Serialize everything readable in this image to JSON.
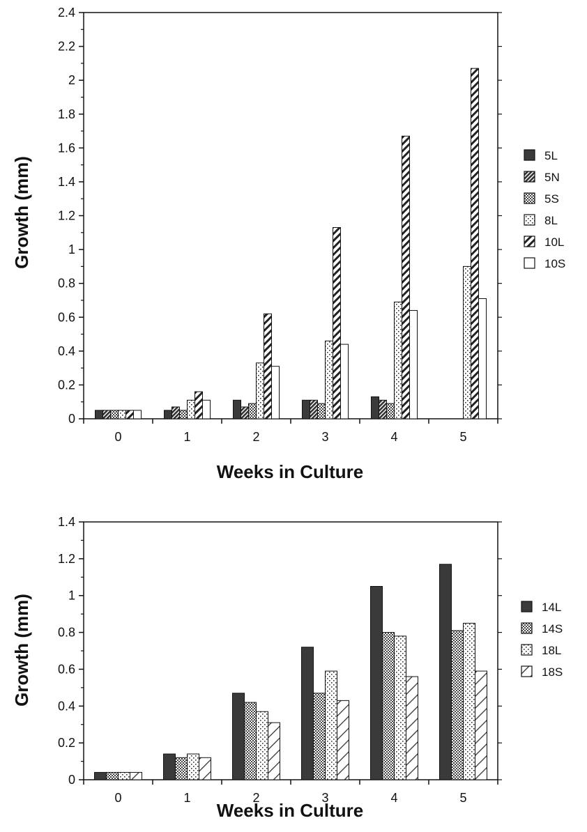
{
  "chart_data": [
    {
      "type": "bar",
      "xlabel": "Weeks in Culture",
      "ylabel": "Growth (mm)",
      "categories": [
        "0",
        "1",
        "2",
        "3",
        "4",
        "5"
      ],
      "ylim": [
        0,
        2.4
      ],
      "yticks": [
        "0",
        "0.2",
        "0.4",
        "0.6",
        "0.8",
        "1",
        "1.2",
        "1.4",
        "1.6",
        "1.8",
        "2",
        "2.2",
        "2.4"
      ],
      "legend_position": "right",
      "grid": false,
      "series": [
        {
          "name": "5L",
          "pattern": "dark",
          "values": [
            0.05,
            0.05,
            0.11,
            0.11,
            0.13,
            null
          ]
        },
        {
          "name": "5N",
          "pattern": "hatch",
          "values": [
            0.05,
            0.07,
            0.07,
            0.11,
            0.11,
            null
          ]
        },
        {
          "name": "5S",
          "pattern": "checker",
          "values": [
            0.05,
            0.05,
            0.09,
            0.09,
            0.09,
            null
          ]
        },
        {
          "name": "8L",
          "pattern": "dots",
          "values": [
            0.05,
            0.11,
            0.33,
            0.46,
            0.69,
            0.9
          ]
        },
        {
          "name": "10L",
          "pattern": "diagonal",
          "values": [
            0.05,
            0.16,
            0.62,
            1.13,
            1.67,
            2.07
          ]
        },
        {
          "name": "10S",
          "pattern": "white",
          "values": [
            0.05,
            0.11,
            0.31,
            0.44,
            0.64,
            0.71
          ]
        }
      ]
    },
    {
      "type": "bar",
      "xlabel": "Weeks in Culture",
      "ylabel": "Growth (mm)",
      "categories": [
        "0",
        "1",
        "2",
        "3",
        "4",
        "5"
      ],
      "ylim": [
        0,
        1.4
      ],
      "yticks": [
        "0",
        "0.2",
        "0.4",
        "0.6",
        "0.8",
        "1",
        "1.2",
        "1.4"
      ],
      "legend_position": "right",
      "grid": false,
      "series": [
        {
          "name": "14L",
          "pattern": "dark",
          "values": [
            0.04,
            0.14,
            0.47,
            0.72,
            1.05,
            1.17
          ]
        },
        {
          "name": "14S",
          "pattern": "checker",
          "values": [
            0.04,
            0.12,
            0.42,
            0.47,
            0.8,
            0.81
          ]
        },
        {
          "name": "18L",
          "pattern": "dots",
          "values": [
            0.04,
            0.14,
            0.37,
            0.59,
            0.78,
            0.85
          ]
        },
        {
          "name": "18S",
          "pattern": "diagonal-thin",
          "values": [
            0.04,
            0.12,
            0.31,
            0.43,
            0.56,
            0.59
          ]
        }
      ]
    }
  ]
}
